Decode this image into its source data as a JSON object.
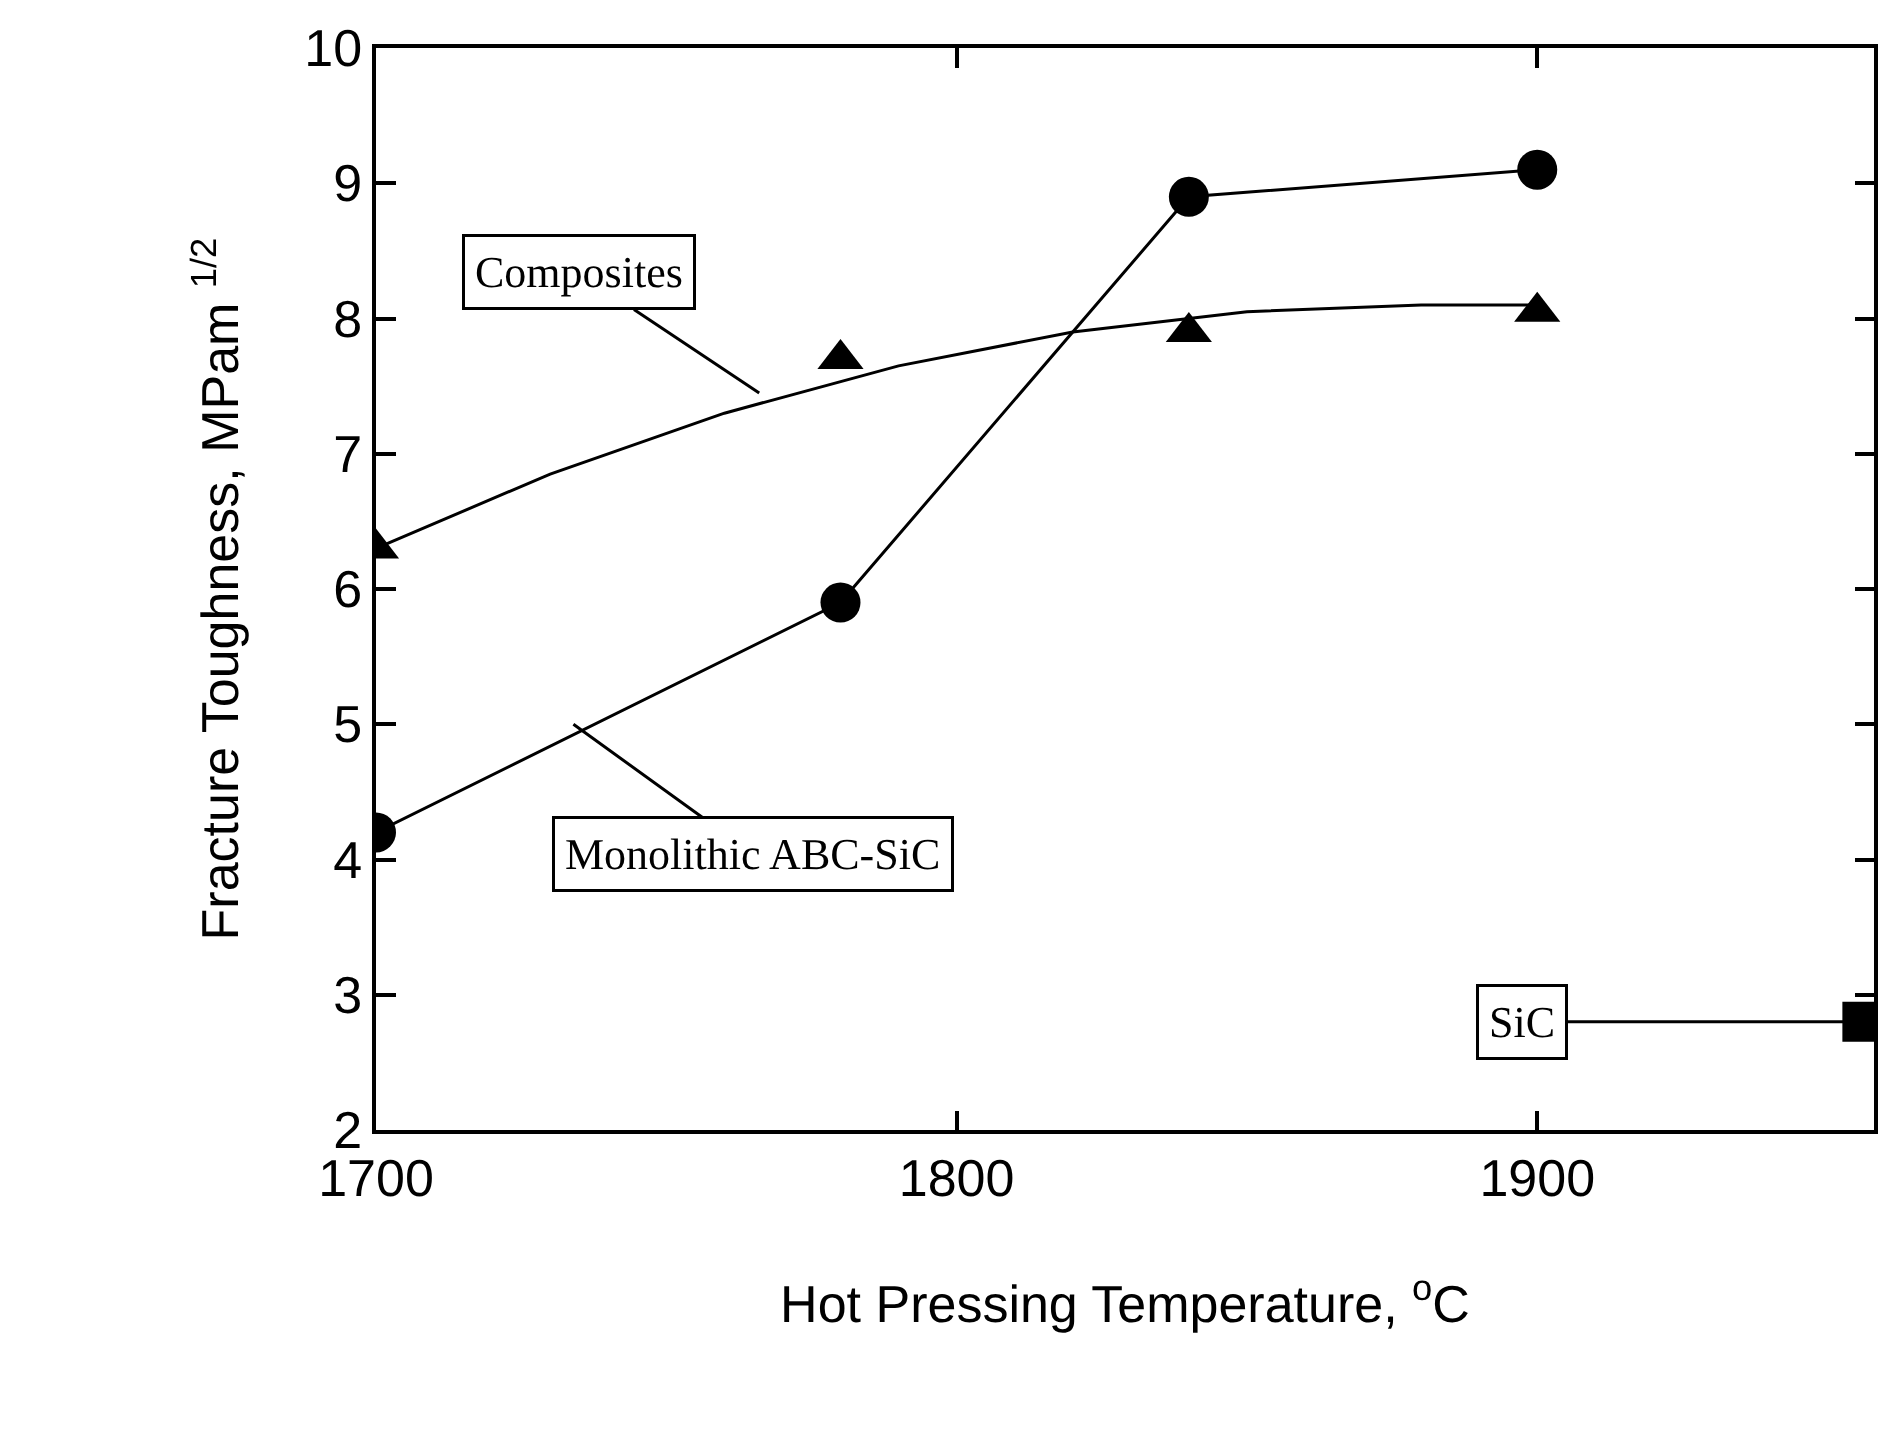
{
  "chart_data": {
    "type": "line",
    "xlabel": "Hot Pressing Temperature, $^{o}$C",
    "ylabel": "Fracture Toughness, MPam $^{1/2}$",
    "xlim": [
      1700,
      1958
    ],
    "xticks": [
      1700,
      1800,
      1900
    ],
    "ylim": [
      2,
      10
    ],
    "yticks": [
      2,
      3,
      4,
      5,
      6,
      7,
      8,
      9,
      10
    ],
    "series": [
      {
        "type": "scatter",
        "marker": "triangle",
        "color": "#000000",
        "x": [
          1700,
          1780,
          1840,
          1900
        ],
        "values": [
          6.3,
          7.7,
          7.9,
          8.05
        ]
      },
      {
        "marker": "none",
        "color": "#000000",
        "x": [
          1700,
          1730,
          1760,
          1790,
          1820,
          1850,
          1880,
          1900
        ],
        "values": [
          6.3,
          6.85,
          7.3,
          7.65,
          7.9,
          8.05,
          8.1,
          8.1
        ]
      },
      {
        "marker": "circle",
        "color": "#000000",
        "x": [
          1700,
          1780,
          1840,
          1900
        ],
        "values": [
          4.2,
          5.9,
          8.9,
          9.1
        ]
      },
      {
        "type": "scatter",
        "marker": "square",
        "color": "#000000",
        "x": [
          1956
        ],
        "values": [
          2.8
        ]
      }
    ],
    "annotations": [
      {
        "text": "Composites",
        "x": 1766,
        "y": 7.45
      },
      {
        "text": "Monolithic ABC-SiC",
        "x": 1734,
        "y": 5.0
      },
      {
        "text": "SiC",
        "x": 1956,
        "y": 2.8
      }
    ]
  }
}
